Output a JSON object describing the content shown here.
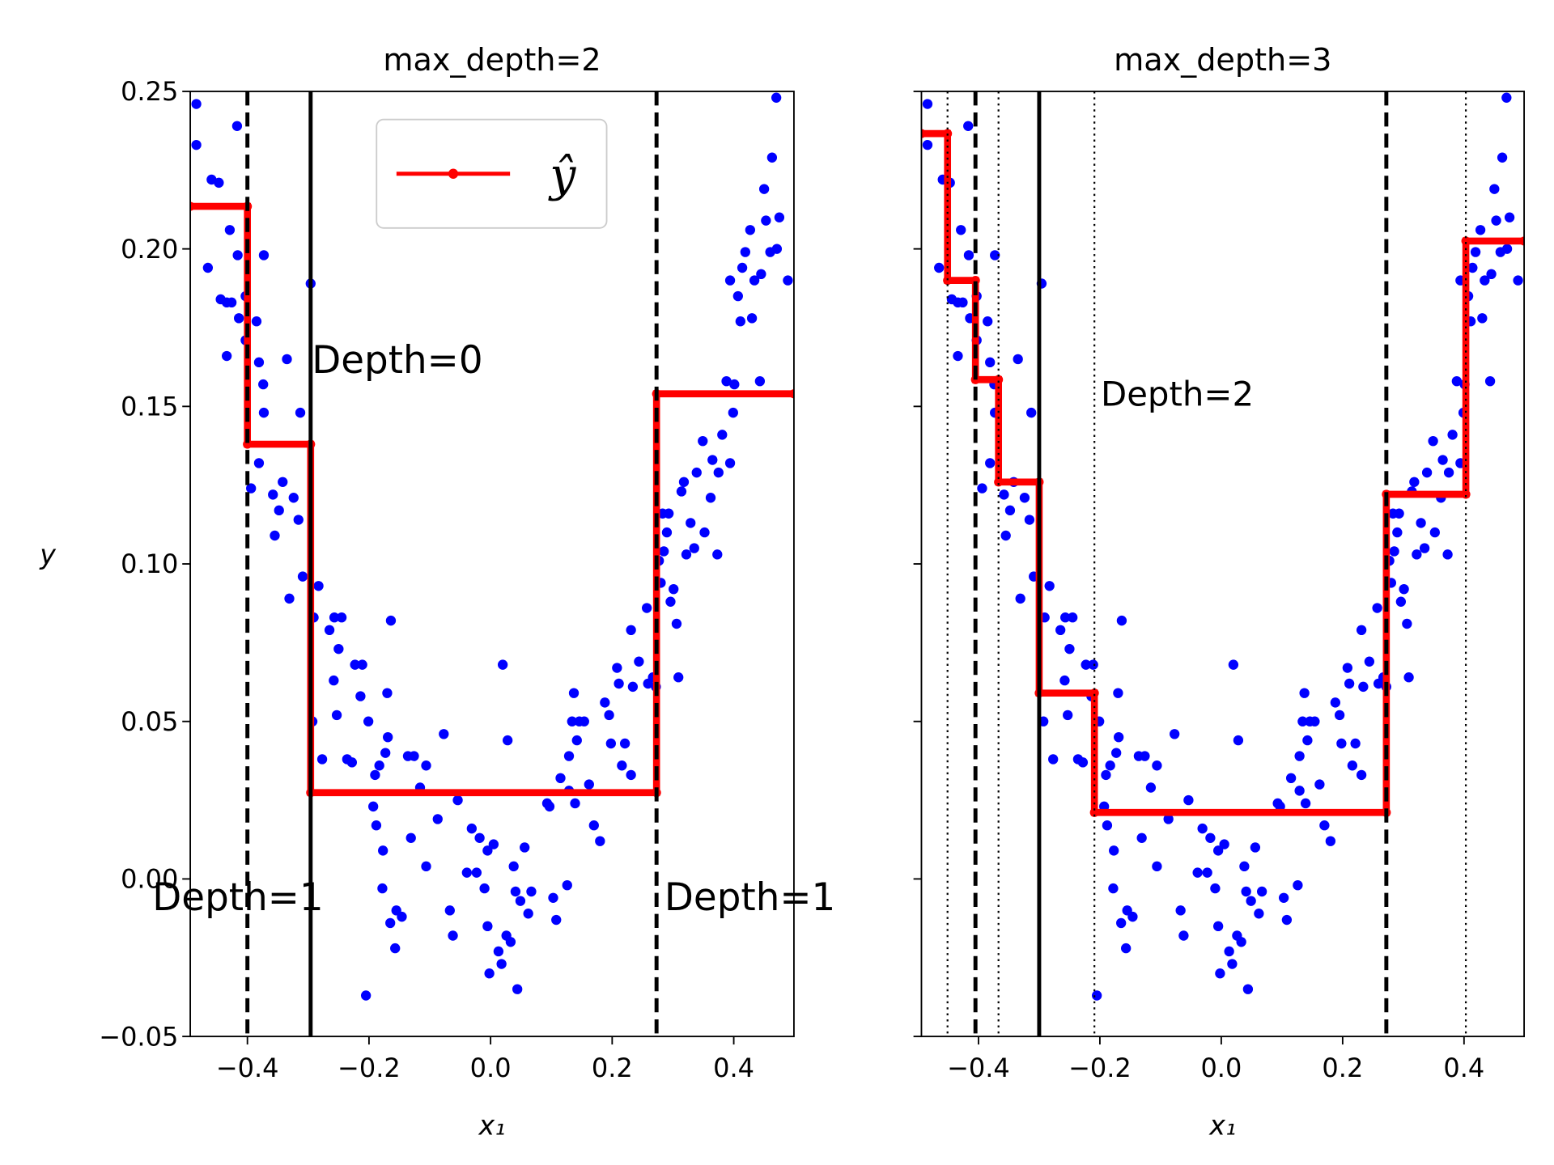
{
  "chart_data": [
    {
      "type": "scatter-step",
      "title": "max_depth=2",
      "xlabel": "x₁",
      "ylabel": "y",
      "xlim": [
        -0.494,
        0.499
      ],
      "ylim": [
        -0.05,
        0.25
      ],
      "xticks": [
        {
          "value": -0.4,
          "label": "−0.4"
        },
        {
          "value": -0.2,
          "label": "−0.2"
        },
        {
          "value": 0,
          "label": "0.0"
        },
        0.2,
        0.4
      ],
      "yticks": [
        {
          "value": -0.05,
          "label": "−0.05"
        },
        {
          "value": 0,
          "label": "0.00"
        },
        0.05,
        {
          "value": 0.1,
          "label": "0.10"
        },
        0.15,
        {
          "value": 0.2,
          "label": "0.20"
        },
        0.25
      ],
      "grid": false,
      "legend": "upper center",
      "scatter": {
        "color": "#0000ff",
        "x": [
          -0.484,
          -0.484,
          -0.465,
          -0.459,
          -0.447,
          -0.444,
          -0.434,
          -0.429,
          -0.426,
          -0.434,
          -0.417,
          -0.416,
          -0.414,
          -0.403,
          -0.403,
          -0.385,
          -0.381,
          -0.374,
          -0.373,
          -0.373,
          -0.381,
          -0.394,
          -0.358,
          -0.355,
          -0.348,
          -0.342,
          -0.335,
          -0.331,
          -0.324,
          -0.316,
          -0.313,
          -0.309,
          -0.296,
          -0.291,
          -0.283,
          -0.293,
          -0.277,
          -0.265,
          -0.257,
          -0.25,
          -0.258,
          -0.253,
          -0.245,
          -0.236,
          -0.228,
          -0.223,
          -0.211,
          -0.214,
          -0.205,
          -0.201,
          -0.193,
          -0.19,
          -0.188,
          -0.183,
          -0.177,
          -0.178,
          -0.17,
          -0.173,
          -0.164,
          -0.169,
          -0.165,
          -0.157,
          -0.155,
          -0.146,
          -0.136,
          -0.131,
          -0.126,
          -0.116,
          -0.106,
          -0.106,
          -0.087,
          -0.077,
          -0.067,
          -0.062,
          -0.054,
          -0.039,
          -0.031,
          -0.023,
          -0.018,
          -0.01,
          -0.005,
          -0.005,
          -0.002,
          0.005,
          0.013,
          0.02,
          0.018,
          0.028,
          0.026,
          0.033,
          0.041,
          0.038,
          0.044,
          0.049,
          0.056,
          0.062,
          0.067,
          0.093,
          0.097,
          0.103,
          0.108,
          0.115,
          0.126,
          0.129,
          0.129,
          0.134,
          0.137,
          0.139,
          0.142,
          0.146,
          0.154,
          0.162,
          0.17,
          0.18,
          0.188,
          0.195,
          0.198,
          0.208,
          0.211,
          0.216,
          0.221,
          0.231,
          0.231,
          0.234,
          0.244,
          0.257,
          0.259,
          0.267,
          0.272,
          0.277,
          0.28,
          0.283,
          0.285,
          0.29,
          0.293,
          0.296,
          0.301,
          0.306,
          0.309,
          0.314,
          0.318,
          0.322,
          0.329,
          0.335,
          0.339,
          0.349,
          0.352,
          0.362,
          0.365,
          0.373,
          0.375,
          0.381,
          0.388,
          0.394,
          0.394,
          0.399,
          0.401,
          0.407,
          0.411,
          0.414,
          0.419,
          0.427,
          0.43,
          0.434,
          0.443,
          0.445,
          0.45,
          0.453,
          0.46,
          0.463,
          0.47,
          0.471,
          0.475,
          0.489
        ],
        "y": [
          0.246,
          0.233,
          0.194,
          0.222,
          0.221,
          0.184,
          0.183,
          0.206,
          0.183,
          0.166,
          0.239,
          0.198,
          0.178,
          0.185,
          0.171,
          0.177,
          0.164,
          0.157,
          0.198,
          0.148,
          0.132,
          0.124,
          0.122,
          0.109,
          0.117,
          0.126,
          0.165,
          0.089,
          0.121,
          0.114,
          0.148,
          0.096,
          0.189,
          0.083,
          0.093,
          0.05,
          0.038,
          0.079,
          0.083,
          0.073,
          0.063,
          0.052,
          0.083,
          0.038,
          0.037,
          0.068,
          0.068,
          0.058,
          -0.037,
          0.05,
          0.023,
          0.033,
          0.017,
          0.036,
          0.009,
          -0.003,
          0.059,
          0.04,
          0.082,
          0.045,
          -0.014,
          -0.022,
          -0.01,
          -0.012,
          0.039,
          0.013,
          0.039,
          0.029,
          0.004,
          0.036,
          0.019,
          0.046,
          -0.01,
          -0.018,
          0.025,
          0.002,
          0.016,
          0.002,
          0.013,
          -0.003,
          0.009,
          -0.015,
          -0.03,
          0.011,
          -0.023,
          0.068,
          -0.027,
          0.044,
          -0.018,
          -0.02,
          -0.004,
          0.004,
          -0.035,
          -0.007,
          0.01,
          -0.011,
          -0.004,
          0.024,
          0.023,
          -0.006,
          -0.013,
          0.032,
          -0.002,
          0.028,
          0.039,
          0.05,
          0.059,
          0.024,
          0.044,
          0.05,
          0.05,
          0.03,
          0.017,
          0.012,
          0.056,
          0.052,
          0.043,
          0.067,
          0.062,
          0.036,
          0.043,
          0.079,
          0.033,
          0.061,
          0.069,
          0.086,
          0.062,
          0.064,
          0.061,
          0.101,
          0.094,
          0.116,
          0.104,
          0.11,
          0.116,
          0.088,
          0.092,
          0.081,
          0.064,
          0.123,
          0.126,
          0.103,
          0.113,
          0.105,
          0.129,
          0.139,
          0.11,
          0.121,
          0.133,
          0.103,
          0.129,
          0.141,
          0.158,
          0.19,
          0.132,
          0.148,
          0.157,
          0.185,
          0.177,
          0.194,
          0.199,
          0.206,
          0.178,
          0.19,
          0.158,
          0.192,
          0.219,
          0.209,
          0.199,
          0.229,
          0.248,
          0.2,
          0.21,
          0.19
        ]
      },
      "lines": [
        {
          "name": "ŷ",
          "color": "#ff0000",
          "x": [
            -0.494,
            -0.4,
            -0.4,
            -0.296,
            -0.296,
            0.273,
            0.273,
            0.499
          ],
          "y": [
            0.2135,
            0.2135,
            0.138,
            0.138,
            0.0274,
            0.0274,
            0.154,
            0.154
          ]
        }
      ],
      "vlines": [
        {
          "x": -0.4,
          "style": "dashed"
        },
        {
          "x": -0.296,
          "style": "solid"
        },
        {
          "x": 0.273,
          "style": "dashed"
        }
      ],
      "annotations": [
        {
          "text": "Depth=0"
        },
        {
          "text": "Depth=1"
        },
        {
          "text": "Depth=1"
        }
      ]
    },
    {
      "type": "scatter-step",
      "title": "max_depth=3",
      "xlabel": "x₁",
      "sharey": true,
      "xlim": [
        -0.494,
        0.499
      ],
      "ylim": [
        -0.05,
        0.25
      ],
      "xticks": [
        {
          "value": -0.4,
          "label": "−0.4"
        },
        {
          "value": -0.2,
          "label": "−0.2"
        },
        {
          "value": 0,
          "label": "0.0"
        },
        0.2,
        0.4
      ],
      "yticks": [
        -0.05,
        0,
        0.05,
        0.1,
        0.15,
        0.2,
        0.25
      ],
      "grid": false,
      "scatter": {
        "color": "#0000ff",
        "x": [
          -0.484,
          -0.484,
          -0.465,
          -0.459,
          -0.447,
          -0.444,
          -0.434,
          -0.429,
          -0.426,
          -0.434,
          -0.417,
          -0.416,
          -0.414,
          -0.403,
          -0.403,
          -0.385,
          -0.381,
          -0.374,
          -0.373,
          -0.373,
          -0.381,
          -0.394,
          -0.358,
          -0.355,
          -0.348,
          -0.342,
          -0.335,
          -0.331,
          -0.324,
          -0.316,
          -0.313,
          -0.309,
          -0.296,
          -0.291,
          -0.283,
          -0.293,
          -0.277,
          -0.265,
          -0.257,
          -0.25,
          -0.258,
          -0.253,
          -0.245,
          -0.236,
          -0.228,
          -0.223,
          -0.211,
          -0.214,
          -0.205,
          -0.201,
          -0.193,
          -0.19,
          -0.188,
          -0.183,
          -0.177,
          -0.178,
          -0.17,
          -0.173,
          -0.164,
          -0.169,
          -0.165,
          -0.157,
          -0.155,
          -0.146,
          -0.136,
          -0.131,
          -0.126,
          -0.116,
          -0.106,
          -0.106,
          -0.087,
          -0.077,
          -0.067,
          -0.062,
          -0.054,
          -0.039,
          -0.031,
          -0.023,
          -0.018,
          -0.01,
          -0.005,
          -0.005,
          -0.002,
          0.005,
          0.013,
          0.02,
          0.018,
          0.028,
          0.026,
          0.033,
          0.041,
          0.038,
          0.044,
          0.049,
          0.056,
          0.062,
          0.067,
          0.093,
          0.097,
          0.103,
          0.108,
          0.115,
          0.126,
          0.129,
          0.129,
          0.134,
          0.137,
          0.139,
          0.142,
          0.146,
          0.154,
          0.162,
          0.17,
          0.18,
          0.188,
          0.195,
          0.198,
          0.208,
          0.211,
          0.216,
          0.221,
          0.231,
          0.231,
          0.234,
          0.244,
          0.257,
          0.259,
          0.267,
          0.272,
          0.277,
          0.28,
          0.283,
          0.285,
          0.29,
          0.293,
          0.296,
          0.301,
          0.306,
          0.309,
          0.314,
          0.318,
          0.322,
          0.329,
          0.335,
          0.339,
          0.349,
          0.352,
          0.362,
          0.365,
          0.373,
          0.375,
          0.381,
          0.388,
          0.394,
          0.394,
          0.399,
          0.401,
          0.407,
          0.411,
          0.414,
          0.419,
          0.427,
          0.43,
          0.434,
          0.443,
          0.445,
          0.45,
          0.453,
          0.46,
          0.463,
          0.47,
          0.471,
          0.475,
          0.489
        ],
        "y": [
          0.246,
          0.233,
          0.194,
          0.222,
          0.221,
          0.184,
          0.183,
          0.206,
          0.183,
          0.166,
          0.239,
          0.198,
          0.178,
          0.185,
          0.171,
          0.177,
          0.164,
          0.157,
          0.198,
          0.148,
          0.132,
          0.124,
          0.122,
          0.109,
          0.117,
          0.126,
          0.165,
          0.089,
          0.121,
          0.114,
          0.148,
          0.096,
          0.189,
          0.083,
          0.093,
          0.05,
          0.038,
          0.079,
          0.083,
          0.073,
          0.063,
          0.052,
          0.083,
          0.038,
          0.037,
          0.068,
          0.068,
          0.058,
          -0.037,
          0.05,
          0.023,
          0.033,
          0.017,
          0.036,
          0.009,
          -0.003,
          0.059,
          0.04,
          0.082,
          0.045,
          -0.014,
          -0.022,
          -0.01,
          -0.012,
          0.039,
          0.013,
          0.039,
          0.029,
          0.004,
          0.036,
          0.019,
          0.046,
          -0.01,
          -0.018,
          0.025,
          0.002,
          0.016,
          0.002,
          0.013,
          -0.003,
          0.009,
          -0.015,
          -0.03,
          0.011,
          -0.023,
          0.068,
          -0.027,
          0.044,
          -0.018,
          -0.02,
          -0.004,
          0.004,
          -0.035,
          -0.007,
          0.01,
          -0.011,
          -0.004,
          0.024,
          0.023,
          -0.006,
          -0.013,
          0.032,
          -0.002,
          0.028,
          0.039,
          0.05,
          0.059,
          0.024,
          0.044,
          0.05,
          0.05,
          0.03,
          0.017,
          0.012,
          0.056,
          0.052,
          0.043,
          0.067,
          0.062,
          0.036,
          0.043,
          0.079,
          0.033,
          0.061,
          0.069,
          0.086,
          0.062,
          0.064,
          0.061,
          0.101,
          0.094,
          0.116,
          0.104,
          0.11,
          0.116,
          0.088,
          0.092,
          0.081,
          0.064,
          0.123,
          0.126,
          0.103,
          0.113,
          0.105,
          0.129,
          0.139,
          0.11,
          0.121,
          0.133,
          0.103,
          0.129,
          0.141,
          0.158,
          0.19,
          0.132,
          0.148,
          0.157,
          0.185,
          0.177,
          0.194,
          0.199,
          0.206,
          0.178,
          0.19,
          0.158,
          0.192,
          0.219,
          0.209,
          0.199,
          0.229,
          0.248,
          0.2,
          0.21,
          0.19
        ]
      },
      "lines": [
        {
          "color": "#ff0000",
          "x": [
            -0.494,
            -0.451,
            -0.451,
            -0.405,
            -0.405,
            -0.367,
            -0.367,
            -0.3,
            -0.3,
            -0.209,
            -0.209,
            0.272,
            0.272,
            0.403,
            0.403,
            0.499
          ],
          "y": [
            0.2366,
            0.2366,
            0.19,
            0.19,
            0.1585,
            0.1585,
            0.126,
            0.126,
            0.059,
            0.059,
            0.0211,
            0.0211,
            0.1221,
            0.1221,
            0.2025,
            0.2025
          ]
        }
      ],
      "vlines": [
        {
          "x": -0.451,
          "style": "dotted"
        },
        {
          "x": -0.405,
          "style": "dashed"
        },
        {
          "x": -0.367,
          "style": "dotted"
        },
        {
          "x": -0.3,
          "style": "solid"
        },
        {
          "x": -0.209,
          "style": "dotted"
        },
        {
          "x": 0.272,
          "style": "dashed"
        },
        {
          "x": 0.403,
          "style": "dotted"
        }
      ],
      "annotations": [
        {
          "text": "Depth=2"
        }
      ]
    }
  ]
}
